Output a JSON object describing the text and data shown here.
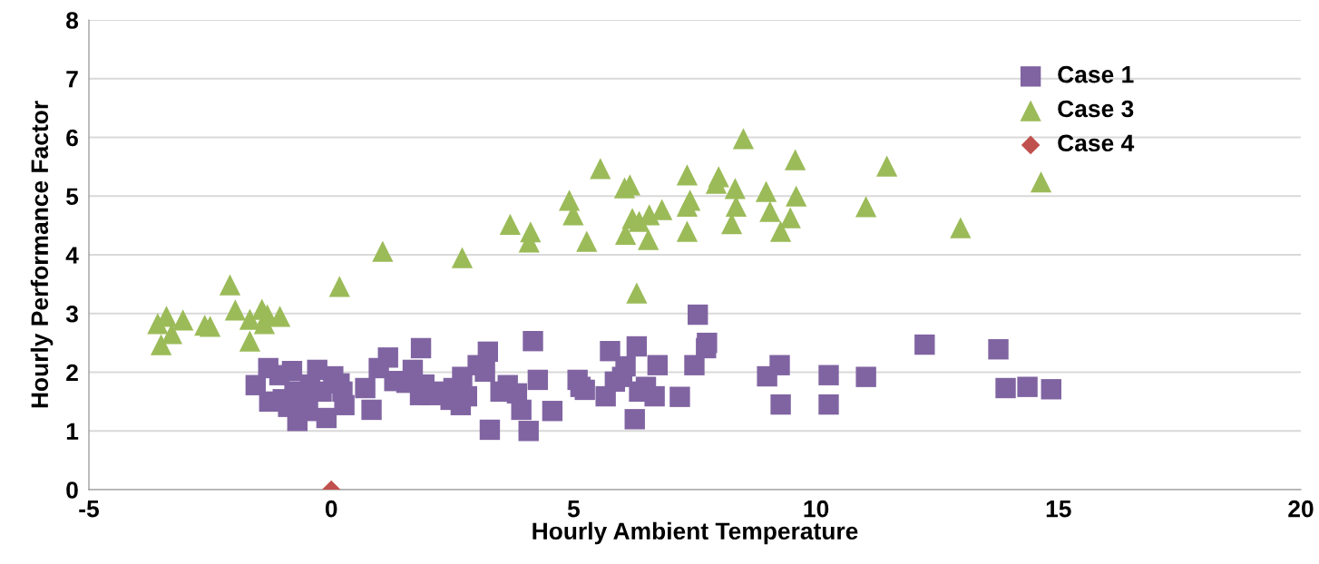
{
  "chart_data": {
    "type": "scatter",
    "xlabel": "Hourly Ambient Temperature",
    "ylabel": "Hourly Performance Factor",
    "xlim": [
      -5,
      20
    ],
    "xticks": [
      -5,
      0,
      5,
      10,
      15,
      20
    ],
    "ylim": [
      0,
      8
    ],
    "yticks": [
      0,
      1,
      2,
      3,
      4,
      5,
      6,
      7,
      8
    ],
    "grid": "y",
    "legend": "top right",
    "series": [
      {
        "name": "Case 1",
        "color": "#8064a2",
        "marker": "square",
        "x": [
          -1.56,
          -1.3,
          -1.28,
          -1.07,
          -1.0,
          -0.89,
          -0.81,
          -0.76,
          -0.7,
          -0.52,
          -0.44,
          -0.29,
          -0.2,
          -0.48,
          -0.1,
          0.04,
          0.17,
          0.23,
          0.27,
          0.7,
          0.83,
          0.98,
          1.17,
          1.3,
          1.55,
          1.68,
          1.83,
          1.85,
          1.92,
          2.05,
          2.24,
          2.46,
          2.52,
          2.7,
          2.67,
          2.8,
          3.02,
          3.17,
          3.27,
          3.23,
          3.49,
          3.64,
          3.83,
          3.92,
          4.07,
          4.16,
          4.26,
          4.56,
          5.08,
          5.14,
          5.23,
          5.66,
          5.75,
          5.85,
          6.0,
          6.07,
          6.26,
          6.3,
          6.35,
          6.49,
          6.67,
          6.73,
          7.19,
          7.49,
          7.56,
          7.73,
          7.75,
          8.99,
          9.25,
          9.27,
          10.26,
          10.26,
          11.03,
          12.24,
          13.76,
          13.91,
          14.36,
          14.85
        ],
        "values": [
          1.78,
          2.07,
          1.5,
          1.95,
          1.54,
          1.41,
          2.02,
          1.67,
          1.17,
          1.53,
          1.79,
          2.04,
          1.67,
          1.34,
          1.22,
          1.93,
          1.81,
          1.67,
          1.44,
          1.73,
          1.36,
          2.07,
          2.25,
          1.85,
          1.82,
          2.04,
          1.61,
          2.41,
          1.79,
          1.61,
          1.67,
          1.53,
          1.73,
          1.92,
          1.44,
          1.59,
          2.12,
          2.01,
          1.02,
          2.35,
          1.67,
          1.78,
          1.64,
          1.36,
          1.0,
          2.53,
          1.87,
          1.34,
          1.87,
          1.75,
          1.7,
          1.59,
          2.36,
          1.84,
          1.92,
          2.1,
          1.2,
          2.44,
          1.67,
          1.75,
          1.59,
          2.12,
          1.58,
          2.12,
          2.98,
          2.41,
          2.5,
          1.93,
          2.12,
          1.45,
          1.95,
          1.45,
          1.92,
          2.47,
          2.39,
          1.73,
          1.75,
          1.71
        ]
      },
      {
        "name": "Case 3",
        "color": "#9bbb59",
        "marker": "triangle",
        "x": [
          -3.51,
          -3.58,
          -3.4,
          -3.29,
          -3.06,
          -2.61,
          -2.5,
          -2.09,
          -1.98,
          -1.68,
          -1.68,
          -1.43,
          -1.32,
          -1.38,
          -1.06,
          0.17,
          1.06,
          2.7,
          3.69,
          4.11,
          4.08,
          4.91,
          4.99,
          5.27,
          5.55,
          6.05,
          6.16,
          6.07,
          6.21,
          6.35,
          6.56,
          6.54,
          6.82,
          7.34,
          7.34,
          7.4,
          7.34,
          7.99,
          7.94,
          8.33,
          8.35,
          8.26,
          8.5,
          8.97,
          9.05,
          9.47,
          9.57,
          9.59,
          9.27,
          11.03,
          11.46,
          12.98,
          14.64,
          6.3
        ],
        "values": [
          2.47,
          2.83,
          2.95,
          2.66,
          2.89,
          2.8,
          2.78,
          3.49,
          3.06,
          2.9,
          2.53,
          3.07,
          2.98,
          2.83,
          2.95,
          3.46,
          4.06,
          3.95,
          4.52,
          4.39,
          4.22,
          4.93,
          4.68,
          4.23,
          5.47,
          5.14,
          5.19,
          4.35,
          4.62,
          4.57,
          4.68,
          4.26,
          4.77,
          5.36,
          4.83,
          4.93,
          4.4,
          5.33,
          5.22,
          5.13,
          4.83,
          4.53,
          5.98,
          5.08,
          4.74,
          4.63,
          5.62,
          5.0,
          4.4,
          4.82,
          5.51,
          4.46,
          5.24,
          3.35
        ]
      },
      {
        "name": "Case 4",
        "color": "#c0504d",
        "marker": "diamond",
        "x": [
          0
        ],
        "values": [
          0
        ]
      }
    ]
  }
}
